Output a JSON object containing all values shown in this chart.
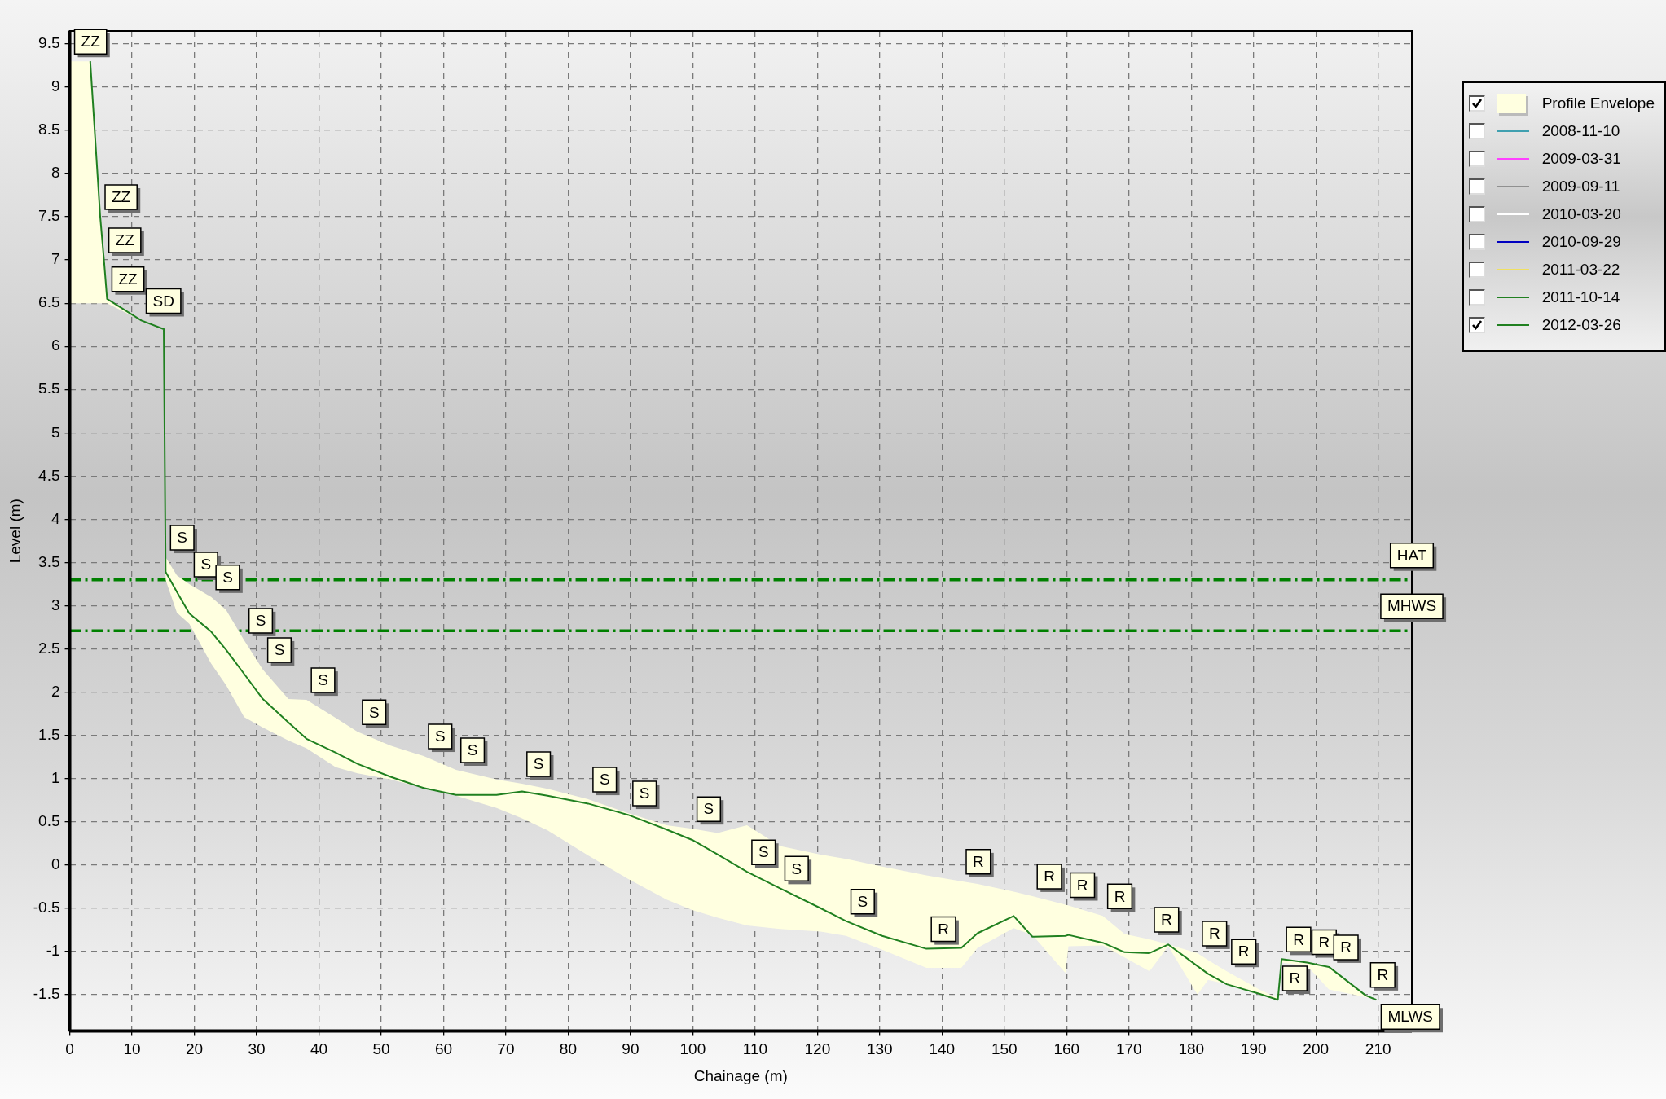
{
  "chart_data": {
    "type": "line",
    "xlabel": "Chainage (m)",
    "ylabel": "Level (m)",
    "xlim": [
      0,
      215.4
    ],
    "xticks": [
      0,
      10,
      20,
      30,
      40,
      50,
      60,
      70,
      80,
      90,
      100,
      110,
      120,
      130,
      140,
      150,
      160,
      170,
      180,
      190,
      200,
      210
    ],
    "ylim": [
      -1.92,
      9.65
    ],
    "yticks": [
      -1.5,
      -1,
      -0.5,
      0,
      0.5,
      1,
      1.5,
      2,
      2.5,
      3,
      3.5,
      4,
      4.5,
      5,
      5.5,
      6,
      6.5,
      7,
      7.5,
      8,
      8.5,
      9,
      9.5
    ],
    "grid": true,
    "legend": "right",
    "marker": "none",
    "line_style": "solid",
    "series": [
      {
        "name": "Profile Envelope",
        "type": "area",
        "color": "#ffffe0"
      },
      {
        "name": "2008-11-10",
        "color": "#40a0b0"
      },
      {
        "name": "2009-03-31",
        "color": "#ff40ff"
      },
      {
        "name": "2009-09-11",
        "color": "#909090"
      },
      {
        "name": "2010-03-20",
        "color": "#ffffff"
      },
      {
        "name": "2010-09-29",
        "color": "#0000c0"
      },
      {
        "name": "2011-03-22",
        "color": "#f0e060"
      },
      {
        "name": "2011-10-14",
        "color": "#208020"
      },
      {
        "name": "2012-03-26",
        "color": "#208020",
        "x": [
          0,
          3.3,
          4.9,
          5.5,
          6.0,
          11.5,
          15.1,
          15.4,
          17.2,
          19.2,
          22.7,
          25.1,
          28.0,
          31.0,
          35.1,
          38.0,
          42.7,
          46.2,
          51.5,
          56.8,
          62.0,
          68.5,
          72.6,
          76.7,
          83.2,
          89.6,
          95.8,
          99.9,
          104.0,
          108.7,
          114.0,
          120.5,
          124.6,
          130.4,
          137.5,
          143.1,
          145.7,
          151.5,
          154.5,
          159.8,
          160.3,
          165.8,
          169.3,
          173.3,
          176.3,
          181.0,
          182.7,
          185.7,
          190.9,
          193.9,
          194.5,
          198.6,
          202.1,
          208.0,
          209.7
        ],
        "values": [
          null,
          9.3,
          7.5,
          7.0,
          6.55,
          6.3,
          6.2,
          3.39,
          3.16,
          2.91,
          2.7,
          2.49,
          2.21,
          1.92,
          1.65,
          1.46,
          1.3,
          1.17,
          1.02,
          0.89,
          0.81,
          0.81,
          0.85,
          0.8,
          0.71,
          0.58,
          0.41,
          0.29,
          0.12,
          -0.08,
          -0.27,
          -0.5,
          -0.65,
          -0.82,
          -0.97,
          -0.96,
          -0.79,
          -0.59,
          -0.83,
          -0.82,
          -0.81,
          -0.9,
          -1.01,
          -1.02,
          -0.92,
          -1.17,
          -1.26,
          -1.38,
          -1.49,
          -1.56,
          -1.09,
          -1.13,
          -1.18,
          -1.51,
          -1.56
        ],
        "upper": [
          9.3,
          9.3,
          7.5,
          7.0,
          6.55,
          6.3,
          6.2,
          3.56,
          3.35,
          3.25,
          3.1,
          2.95,
          2.6,
          2.26,
          1.92,
          1.91,
          1.7,
          1.54,
          1.38,
          1.26,
          1.1,
          0.99,
          0.94,
          0.88,
          0.76,
          0.6,
          0.46,
          0.42,
          0.37,
          0.46,
          0.22,
          0.12,
          0.07,
          -0.02,
          -0.12,
          -0.19,
          -0.22,
          -0.31,
          -0.36,
          -0.46,
          -0.47,
          -0.59,
          -0.8,
          -0.86,
          -0.92,
          -1.02,
          -1.1,
          -1.23,
          -1.44,
          -1.54,
          -1.09,
          -1.12,
          -1.18,
          -1.5,
          -1.56
        ],
        "lower": [
          6.5,
          6.5,
          6.5,
          6.5,
          6.5,
          6.3,
          6.2,
          3.3,
          2.92,
          2.79,
          2.33,
          2.08,
          1.71,
          1.59,
          1.44,
          1.35,
          1.13,
          1.06,
          0.99,
          0.89,
          0.8,
          0.66,
          0.54,
          0.4,
          0.11,
          -0.16,
          -0.4,
          -0.52,
          -0.61,
          -0.7,
          -0.74,
          -0.77,
          -0.82,
          -0.98,
          -1.19,
          -1.19,
          -0.96,
          -0.73,
          -0.81,
          -1.25,
          -0.94,
          -0.93,
          -1.07,
          -1.23,
          -0.94,
          -1.5,
          -1.33,
          -1.38,
          -1.5,
          -1.56,
          -1.13,
          -1.17,
          -1.44,
          -1.53,
          -1.56
        ]
      }
    ],
    "ref_lines": [
      {
        "axis": "y",
        "value": 3.3,
        "label": "HAT",
        "color": "#008000",
        "line_style": "dashed"
      },
      {
        "axis": "y",
        "value": 2.71,
        "label": "MHWS",
        "color": "#008000",
        "line_style": "dashed"
      }
    ],
    "annotations": [
      {
        "text": "ZZ",
        "x": 0,
        "y": 9.3
      },
      {
        "text": "ZZ",
        "x": 4.9,
        "y": 7.5
      },
      {
        "text": "ZZ",
        "x": 5.5,
        "y": 7.0
      },
      {
        "text": "ZZ",
        "x": 6.0,
        "y": 6.55
      },
      {
        "text": "SD",
        "x": 11.5,
        "y": 6.3
      },
      {
        "text": "S",
        "x": 15.4,
        "y": 3.56
      },
      {
        "text": "S",
        "x": 19.2,
        "y": 3.25
      },
      {
        "text": "S",
        "x": 22.7,
        "y": 3.1
      },
      {
        "text": "S",
        "x": 28.0,
        "y": 2.6
      },
      {
        "text": "S",
        "x": 31.0,
        "y": 2.26
      },
      {
        "text": "S",
        "x": 38.0,
        "y": 1.91
      },
      {
        "text": "S",
        "x": 46.2,
        "y": 1.54
      },
      {
        "text": "S",
        "x": 56.8,
        "y": 1.26
      },
      {
        "text": "S",
        "x": 62.0,
        "y": 1.1
      },
      {
        "text": "S",
        "x": 72.6,
        "y": 0.94
      },
      {
        "text": "S",
        "x": 83.2,
        "y": 0.76
      },
      {
        "text": "S",
        "x": 89.6,
        "y": 0.6
      },
      {
        "text": "S",
        "x": 99.9,
        "y": 0.42
      },
      {
        "text": "S",
        "x": 108.7,
        "y": -0.08
      },
      {
        "text": "S",
        "x": 114.0,
        "y": -0.27
      },
      {
        "text": "S",
        "x": 124.6,
        "y": -0.65
      },
      {
        "text": "R",
        "x": 137.5,
        "y": -0.97
      },
      {
        "text": "R",
        "x": 143.1,
        "y": -0.19
      },
      {
        "text": "R",
        "x": 154.5,
        "y": -0.36
      },
      {
        "text": "R",
        "x": 159.8,
        "y": -0.46
      },
      {
        "text": "R",
        "x": 165.8,
        "y": -0.59
      },
      {
        "text": "R",
        "x": 173.3,
        "y": -0.86
      },
      {
        "text": "R",
        "x": 181.0,
        "y": -1.02
      },
      {
        "text": "R",
        "x": 185.7,
        "y": -1.23
      },
      {
        "text": "R",
        "x": 194.5,
        "y": -1.09
      },
      {
        "text": "R",
        "x": 198.6,
        "y": -1.12
      },
      {
        "text": "R",
        "x": 193.9,
        "y": -1.54
      },
      {
        "text": "R",
        "x": 202.1,
        "y": -1.18
      },
      {
        "text": "R",
        "x": 208.0,
        "y": -1.5
      },
      {
        "text": "MLWS",
        "x": 209.7,
        "y": -1.56
      }
    ]
  }
}
